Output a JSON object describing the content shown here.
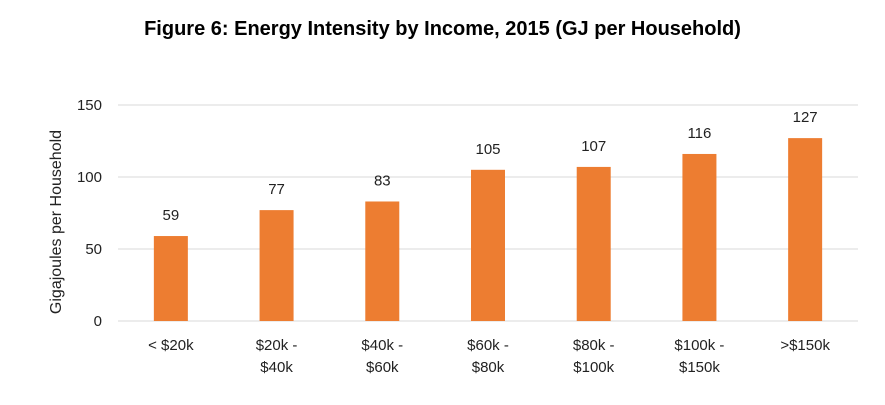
{
  "chart_data": {
    "type": "bar",
    "title": "Figure 6: Energy Intensity by Income, 2015 (GJ per Household)",
    "xlabel": "",
    "ylabel": "Gigajoules per Household",
    "categories": [
      [
        "< $20k"
      ],
      [
        "$20k -",
        "$40k"
      ],
      [
        "$40k -",
        "$60k"
      ],
      [
        "$60k -",
        "$80k"
      ],
      [
        "$80k -",
        "$100k"
      ],
      [
        "$100k -",
        "$150k"
      ],
      [
        ">$150k"
      ]
    ],
    "values": [
      59,
      77,
      83,
      105,
      107,
      116,
      127
    ],
    "ylim": [
      0,
      150
    ],
    "yticks": [
      0,
      50,
      100,
      150
    ],
    "grid": true,
    "legend": "none",
    "bar_color": "#ED7D31",
    "grid_color": "#D9D9D9"
  }
}
